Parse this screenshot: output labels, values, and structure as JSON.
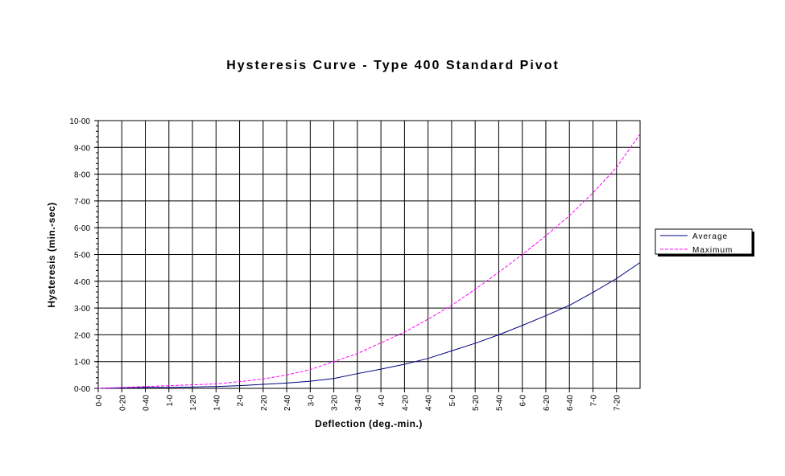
{
  "chart_data": {
    "type": "line",
    "title": "Hysteresis Curve - Type 400 Standard Pivot",
    "x_label": "Deflection (deg.-min.)",
    "y_label": "Hysteresis (min.-sec)",
    "x": [
      0,
      20,
      40,
      60,
      80,
      100,
      120,
      140,
      160,
      180,
      200,
      220,
      240,
      260,
      280,
      300,
      320,
      340,
      360,
      380,
      400,
      420,
      440,
      460
    ],
    "xlim": [
      0,
      460
    ],
    "xticks": [
      {
        "value": 0,
        "label": "0-0"
      },
      {
        "value": 20,
        "label": "0-20"
      },
      {
        "value": 40,
        "label": "0-40"
      },
      {
        "value": 60,
        "label": "1-0"
      },
      {
        "value": 80,
        "label": "1-20"
      },
      {
        "value": 100,
        "label": "1-40"
      },
      {
        "value": 120,
        "label": "2-0"
      },
      {
        "value": 140,
        "label": "2-20"
      },
      {
        "value": 160,
        "label": "2-40"
      },
      {
        "value": 180,
        "label": "3-0"
      },
      {
        "value": 200,
        "label": "3-20"
      },
      {
        "value": 220,
        "label": "3-40"
      },
      {
        "value": 240,
        "label": "4-0"
      },
      {
        "value": 260,
        "label": "4-20"
      },
      {
        "value": 280,
        "label": "4-40"
      },
      {
        "value": 300,
        "label": "5-0"
      },
      {
        "value": 320,
        "label": "5-20"
      },
      {
        "value": 340,
        "label": "5-40"
      },
      {
        "value": 360,
        "label": "6-0"
      },
      {
        "value": 380,
        "label": "6-20"
      },
      {
        "value": 400,
        "label": "6-40"
      },
      {
        "value": 420,
        "label": "7-0"
      },
      {
        "value": 440,
        "label": "7-20"
      }
    ],
    "ylim": [
      0,
      600
    ],
    "yticks": [
      {
        "value": 0,
        "label": "0-00"
      },
      {
        "value": 60,
        "label": "1-00"
      },
      {
        "value": 120,
        "label": "2-00"
      },
      {
        "value": 180,
        "label": "3-00"
      },
      {
        "value": 240,
        "label": "4-00"
      },
      {
        "value": 300,
        "label": "5-00"
      },
      {
        "value": 360,
        "label": "6-00"
      },
      {
        "value": 420,
        "label": "7-00"
      },
      {
        "value": 480,
        "label": "8-00"
      },
      {
        "value": 540,
        "label": "9-00"
      },
      {
        "value": 600,
        "label": "10-00"
      }
    ],
    "grid": true,
    "legend": "right",
    "series": [
      {
        "name": "Average",
        "color": "#000080",
        "dashed": false,
        "values": [
          0,
          1,
          2,
          2,
          3,
          4,
          6,
          9,
          12,
          16,
          22,
          33,
          43,
          54,
          67,
          84,
          101,
          120,
          141,
          163,
          186,
          215,
          246,
          282
        ]
      },
      {
        "name": "Maximum",
        "color": "#ff00ff",
        "dashed": true,
        "values": [
          0,
          2,
          4,
          6,
          8,
          10,
          15,
          21,
          30,
          42,
          60,
          78,
          102,
          126,
          155,
          186,
          222,
          260,
          300,
          342,
          387,
          438,
          495,
          570
        ]
      }
    ]
  }
}
